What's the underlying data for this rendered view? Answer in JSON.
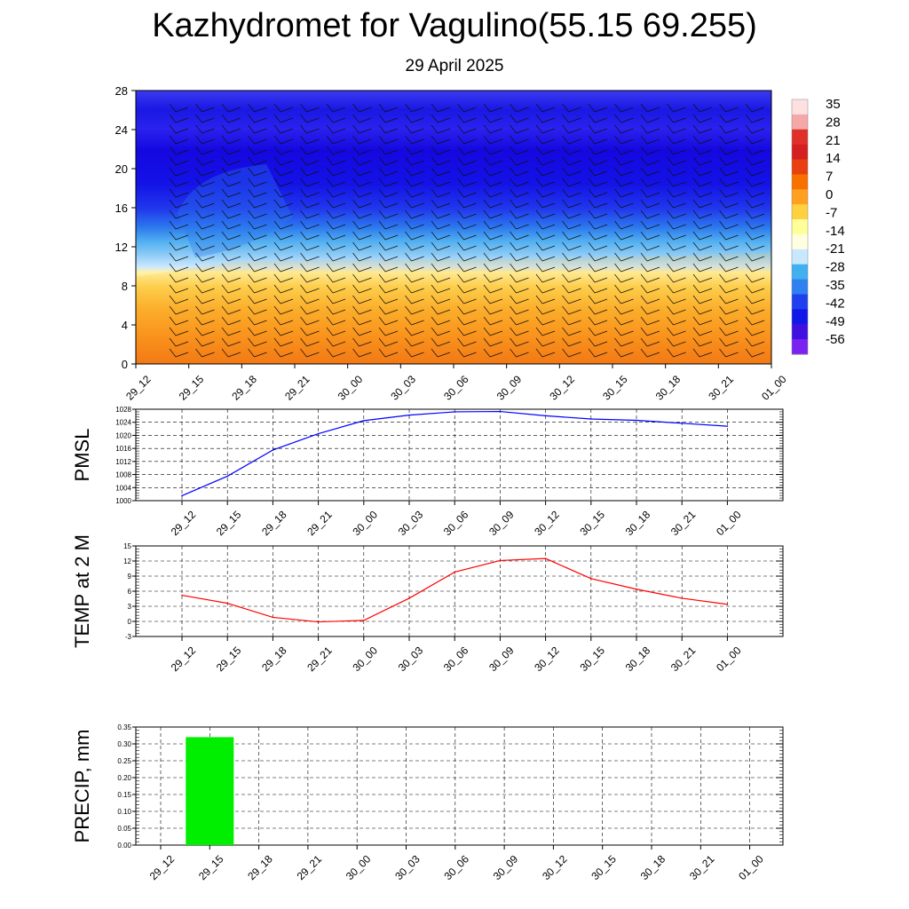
{
  "header": {
    "title": "Kazhydromet for Vagulino(55.15 69.255)",
    "subtitle": "29 April 2025"
  },
  "chart_data": [
    {
      "type": "heatmap",
      "name": "cross-section",
      "ylim": [
        0,
        28
      ],
      "yticks": [
        "0",
        "4",
        "8",
        "12",
        "16",
        "20",
        "24",
        "28"
      ],
      "categories": [
        "29_12",
        "29_15",
        "29_18",
        "29_21",
        "30_00",
        "30_03",
        "30_06",
        "30_09",
        "30_12",
        "30_15",
        "30_18",
        "30_21",
        "01_00"
      ],
      "colorbar": {
        "labels": [
          "35",
          "28",
          "21",
          "14",
          "7",
          "0",
          "-7",
          "-14",
          "-21",
          "-28",
          "-35",
          "-42",
          "-49",
          "-56"
        ],
        "colors": [
          "#ffe0e0",
          "#f4a8a8",
          "#e03028",
          "#d42020",
          "#e84010",
          "#f87000",
          "#ffa020",
          "#ffd040",
          "#ffff99",
          "#ffffe0",
          "#c8e8ff",
          "#40b0f0",
          "#3080f0",
          "#2040f0",
          "#1018e8",
          "#4010e0",
          "#7a22f0"
        ]
      }
    },
    {
      "type": "line",
      "ylabel": "PMSL",
      "ylim": [
        1000,
        1028
      ],
      "yticks": [
        "1000",
        "1004",
        "1008",
        "1012",
        "1016",
        "1020",
        "1024",
        "1028"
      ],
      "categories": [
        "29_12",
        "29_15",
        "29_18",
        "29_21",
        "30_00",
        "30_03",
        "30_06",
        "30_09",
        "30_12",
        "30_15",
        "30_18",
        "30_21",
        "01_00"
      ],
      "values": [
        1001.5,
        1007.5,
        1015.5,
        1020.5,
        1024.5,
        1026.2,
        1027.2,
        1027.3,
        1026.0,
        1025.0,
        1024.6,
        1023.7,
        1022.8
      ],
      "color": "#0000ff"
    },
    {
      "type": "line",
      "ylabel": "TEMP at 2 M",
      "ylim": [
        -3,
        15
      ],
      "yticks": [
        "-3",
        "0",
        "3",
        "6",
        "9",
        "12",
        "15"
      ],
      "categories": [
        "29_12",
        "29_15",
        "29_18",
        "29_21",
        "30_00",
        "30_03",
        "30_06",
        "30_09",
        "30_12",
        "30_15",
        "30_18",
        "30_21",
        "01_00"
      ],
      "values": [
        5.2,
        3.6,
        0.8,
        -0.1,
        0.2,
        4.6,
        9.8,
        12.1,
        12.5,
        8.5,
        6.4,
        4.6,
        3.4
      ],
      "color": "#ff0000"
    },
    {
      "type": "bar",
      "ylabel": "PRECIP, mm",
      "ylim": [
        0,
        0.35
      ],
      "yticks": [
        "0.00",
        "0.05",
        "0.10",
        "0.15",
        "0.20",
        "0.25",
        "0.30",
        "0.35"
      ],
      "categories": [
        "29_12",
        "29_15",
        "29_18",
        "29_21",
        "30_00",
        "30_03",
        "30_06",
        "30_09",
        "30_12",
        "30_15",
        "30_18",
        "30_21",
        "01_00"
      ],
      "values": [
        0,
        0.32,
        0,
        0,
        0,
        0,
        0,
        0,
        0,
        0,
        0,
        0,
        0
      ],
      "color": "#00ee00"
    }
  ]
}
